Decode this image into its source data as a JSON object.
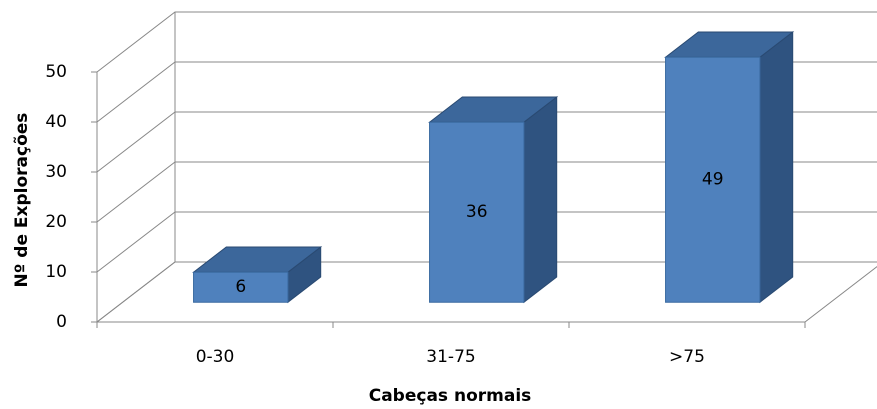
{
  "chart_data": {
    "type": "bar3d",
    "categories": [
      "0-30",
      "31-75",
      ">75"
    ],
    "values": [
      6,
      36,
      49
    ],
    "ylim": [
      0,
      50
    ],
    "yticks": [
      0,
      10,
      20,
      30,
      40,
      50
    ],
    "x_label": "Cabeças normais",
    "y_label": "Nº de Explorações",
    "color": "#4f81bd",
    "grid": true,
    "data_labels": true
  }
}
